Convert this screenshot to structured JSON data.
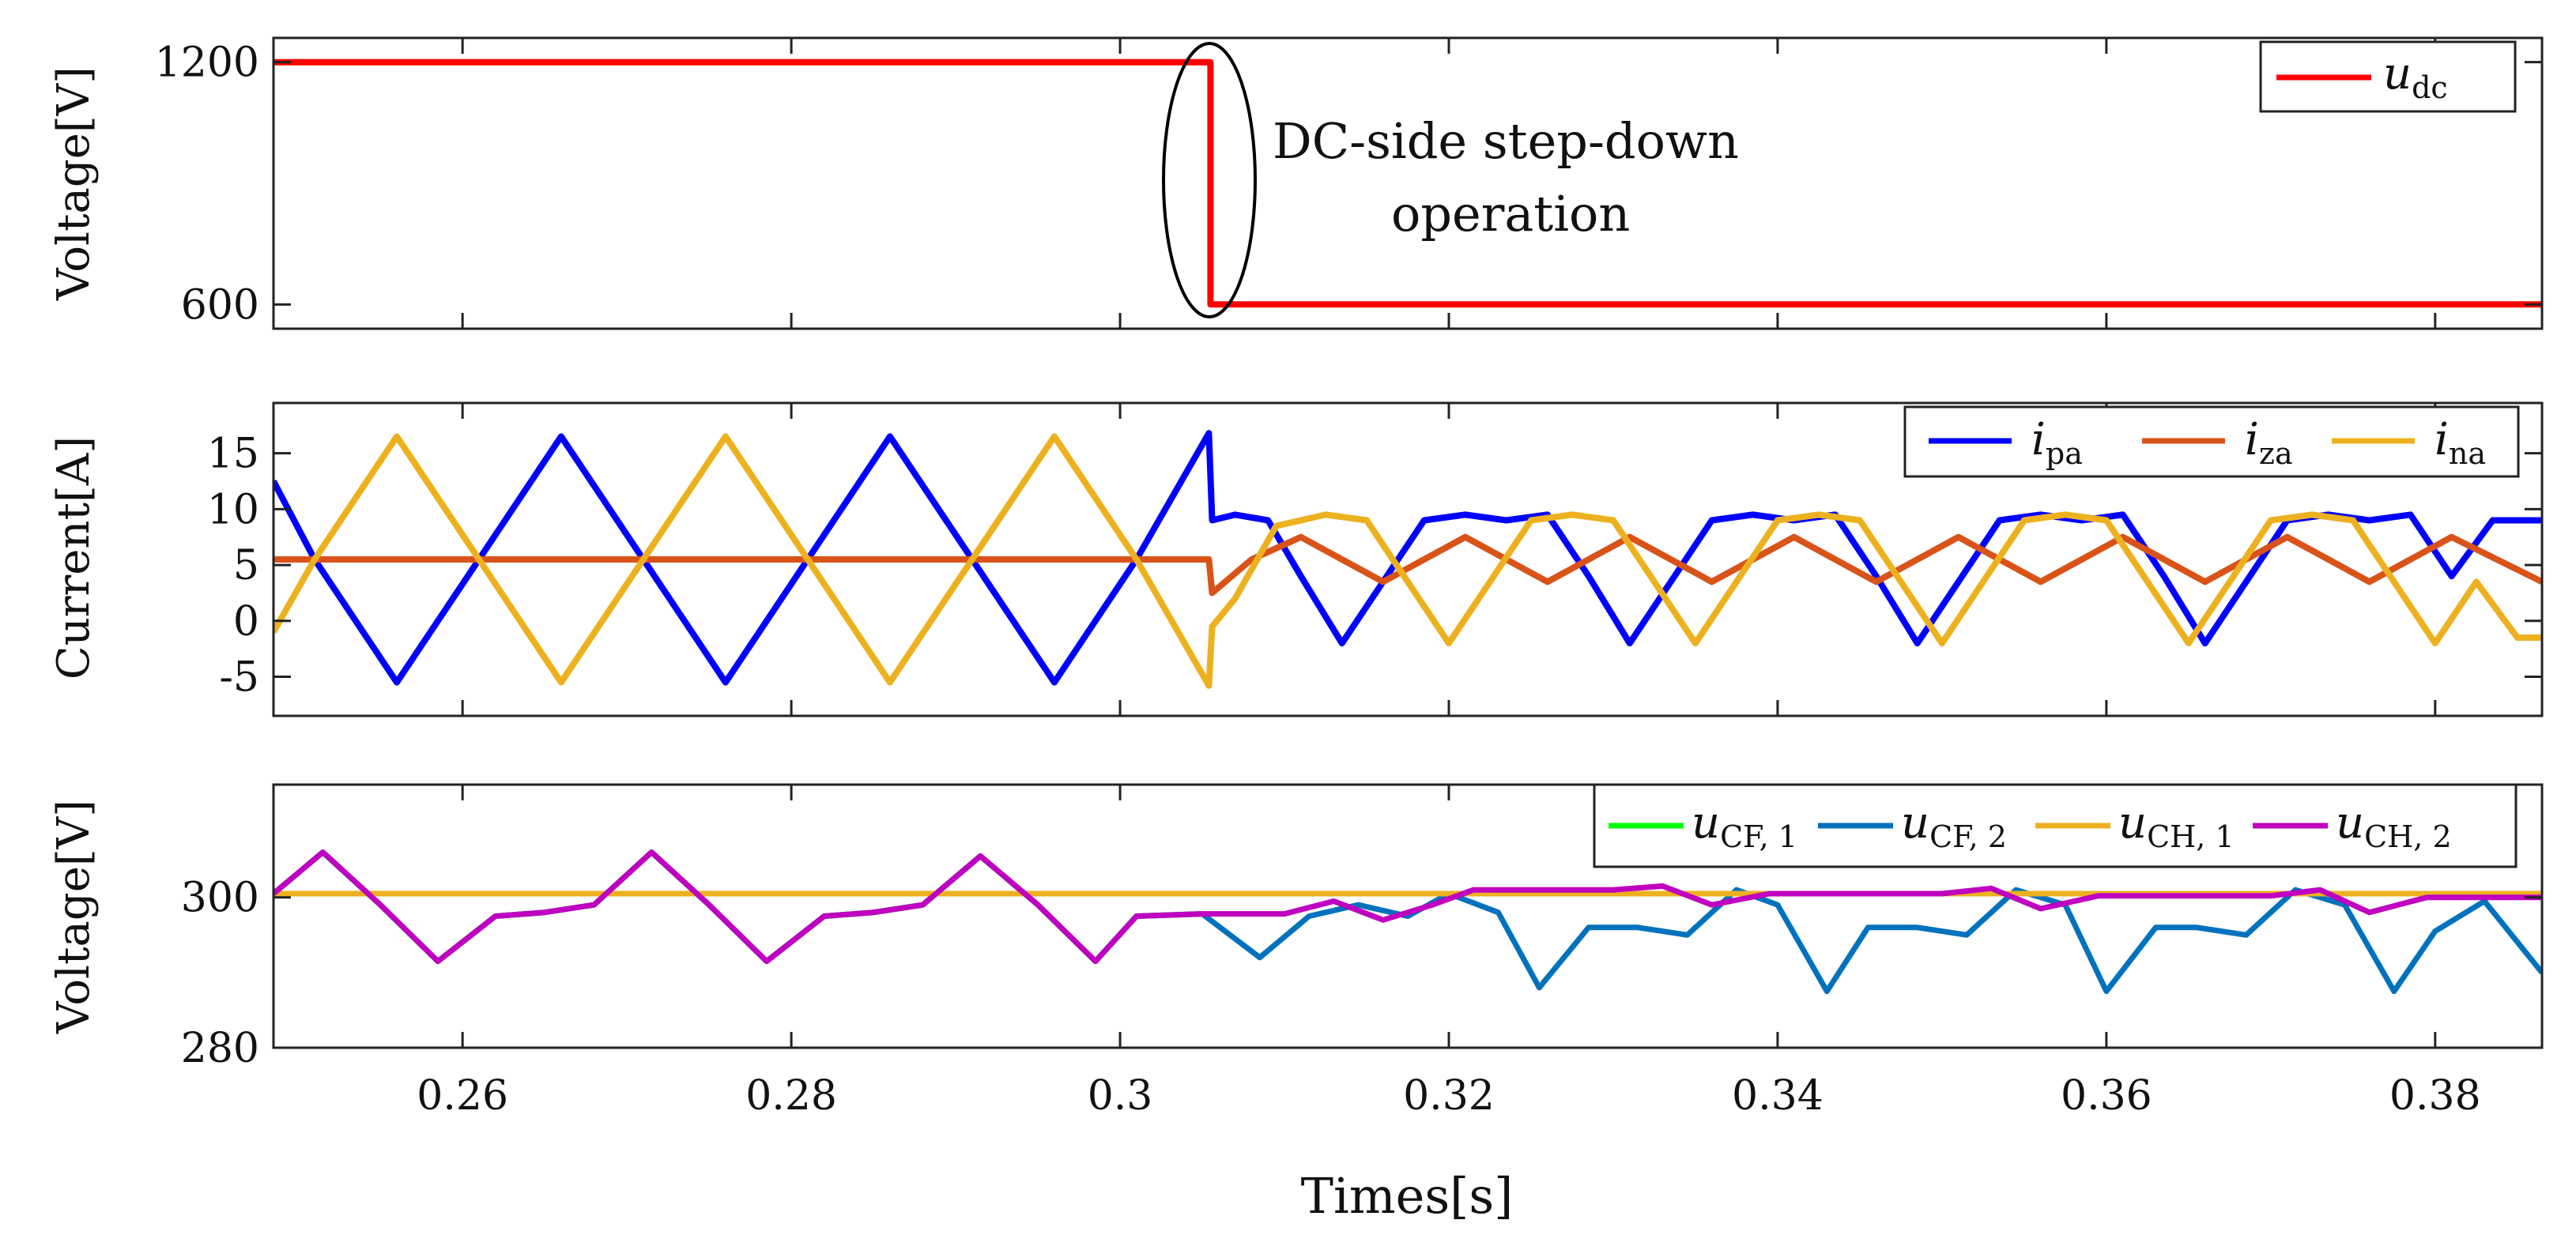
{
  "chart_data": [
    {
      "type": "line",
      "panel": "top",
      "ylabel": "Voltage[V]",
      "ylim": [
        540,
        1260
      ],
      "yticks": [
        600,
        1200
      ],
      "tick_labels": [
        "600",
        "1200"
      ],
      "xlim": [
        0.2485,
        0.3865
      ],
      "legend_position": "top-right",
      "annotation": [
        "DC-side step-down",
        "operation"
      ],
      "series": [
        {
          "name": "u_dc",
          "label": "u",
          "sub": "dc",
          "color": "#ff0000",
          "x": [
            0.2485,
            0.3055,
            0.3055,
            0.3865
          ],
          "y": [
            1200,
            1200,
            600,
            600
          ]
        }
      ]
    },
    {
      "type": "line",
      "panel": "middle",
      "ylabel": "Current[A]",
      "ylim": [
        -8.5,
        19.5
      ],
      "yticks": [
        -5,
        0,
        5,
        10,
        15
      ],
      "tick_labels": [
        "-5",
        "0",
        "5",
        "10",
        "15"
      ],
      "xlim": [
        0.2485,
        0.3865
      ],
      "legend_position": "top-right",
      "series": [
        {
          "name": "i_pa",
          "label": "i",
          "sub": "pa",
          "color": "#0000ff",
          "x": [
            0.2485,
            0.251,
            0.256,
            0.261,
            0.266,
            0.271,
            0.276,
            0.281,
            0.286,
            0.291,
            0.296,
            0.301,
            0.3054,
            0.3056,
            0.307,
            0.309,
            0.311,
            0.3135,
            0.316,
            0.3185,
            0.321,
            0.3235,
            0.326,
            0.3285,
            0.331,
            0.3335,
            0.336,
            0.3385,
            0.341,
            0.3435,
            0.346,
            0.3485,
            0.351,
            0.3535,
            0.356,
            0.3585,
            0.361,
            0.3635,
            0.366,
            0.3685,
            0.371,
            0.3735,
            0.376,
            0.3785,
            0.381,
            0.3835,
            0.3865
          ],
          "y": [
            12.5,
            5.5,
            -5.5,
            5.5,
            16.5,
            5.5,
            -5.5,
            5.5,
            16.5,
            5.5,
            -5.5,
            5.5,
            16.8,
            9.0,
            9.5,
            9.0,
            4.0,
            -2.0,
            3.5,
            9.0,
            9.5,
            9.0,
            9.5,
            4.0,
            -2.0,
            3.5,
            9.0,
            9.5,
            9.0,
            9.5,
            4.0,
            -2.0,
            3.5,
            9.0,
            9.5,
            9.0,
            9.5,
            4.0,
            -2.0,
            3.5,
            9.0,
            9.5,
            9.0,
            9.5,
            4.0,
            9.0,
            9.0
          ]
        },
        {
          "name": "i_za",
          "label": "i",
          "sub": "za",
          "color": "#d95319",
          "x": [
            0.2485,
            0.3054,
            0.3056,
            0.308,
            0.311,
            0.316,
            0.321,
            0.326,
            0.331,
            0.336,
            0.341,
            0.346,
            0.351,
            0.356,
            0.361,
            0.366,
            0.371,
            0.376,
            0.381,
            0.3865
          ],
          "y": [
            5.5,
            5.5,
            2.5,
            5.5,
            7.5,
            3.5,
            7.5,
            3.5,
            7.5,
            3.5,
            7.5,
            3.5,
            7.5,
            3.5,
            7.5,
            3.5,
            7.5,
            3.5,
            7.5,
            3.5
          ]
        },
        {
          "name": "i_na",
          "label": "i",
          "sub": "na",
          "color": "#edb120",
          "x": [
            0.2485,
            0.251,
            0.256,
            0.261,
            0.266,
            0.271,
            0.276,
            0.281,
            0.286,
            0.291,
            0.296,
            0.301,
            0.3054,
            0.3056,
            0.307,
            0.3095,
            0.3125,
            0.315,
            0.3175,
            0.32,
            0.3225,
            0.325,
            0.3275,
            0.33,
            0.3325,
            0.335,
            0.3375,
            0.34,
            0.3425,
            0.345,
            0.3475,
            0.35,
            0.3525,
            0.355,
            0.3575,
            0.36,
            0.3625,
            0.365,
            0.3675,
            0.37,
            0.3725,
            0.375,
            0.3775,
            0.38,
            0.3825,
            0.385,
            0.3865
          ],
          "y": [
            -1.0,
            5.5,
            16.5,
            5.5,
            -5.5,
            5.5,
            16.5,
            5.5,
            -5.5,
            5.5,
            16.5,
            5.5,
            -5.8,
            -0.5,
            2.0,
            8.5,
            9.5,
            9.0,
            3.5,
            -2.0,
            3.5,
            9.0,
            9.5,
            9.0,
            3.5,
            -2.0,
            3.5,
            9.0,
            9.5,
            9.0,
            3.5,
            -2.0,
            3.5,
            9.0,
            9.5,
            9.0,
            3.5,
            -2.0,
            3.5,
            9.0,
            9.5,
            9.0,
            3.5,
            -2.0,
            3.5,
            -1.5,
            -1.5
          ]
        }
      ]
    },
    {
      "type": "line",
      "panel": "bottom",
      "ylabel": "Voltage[V]",
      "xlabel": "Times[s]",
      "ylim": [
        280,
        315
      ],
      "yticks": [
        280,
        300
      ],
      "tick_labels": [
        "280",
        "300"
      ],
      "xlim": [
        0.2485,
        0.3865
      ],
      "xticks": [
        0.26,
        0.28,
        0.3,
        0.32,
        0.34,
        0.36,
        0.38
      ],
      "xtick_labels": [
        "0.26",
        "0.28",
        "0.3",
        "0.32",
        "0.34",
        "0.36",
        "0.38"
      ],
      "legend_position": "top-right",
      "series": [
        {
          "name": "u_CF,1",
          "label": "u",
          "sub": "CF, 1",
          "color": "#00ff00",
          "x": [
            0.2485,
            0.2515,
            0.255,
            0.2585,
            0.262,
            0.265,
            0.268,
            0.2715,
            0.275,
            0.2785,
            0.282,
            0.285,
            0.288,
            0.2915,
            0.295,
            0.2985,
            0.301,
            0.305
          ],
          "y": [
            300.5,
            306,
            299,
            291.5,
            297.5,
            298,
            299,
            306,
            299,
            291.5,
            297.5,
            298,
            299,
            305.5,
            299,
            291.5,
            297.5,
            297.8
          ]
        },
        {
          "name": "u_CF,2",
          "label": "u",
          "sub": "CF, 2",
          "color": "#0072bd",
          "x": [
            0.2485,
            0.2515,
            0.255,
            0.2585,
            0.262,
            0.265,
            0.268,
            0.2715,
            0.275,
            0.2785,
            0.282,
            0.285,
            0.288,
            0.2915,
            0.295,
            0.2985,
            0.301,
            0.305,
            0.3085,
            0.3115,
            0.3145,
            0.3175,
            0.32,
            0.323,
            0.3255,
            0.3285,
            0.3315,
            0.3345,
            0.3375,
            0.34,
            0.343,
            0.3455,
            0.3485,
            0.3515,
            0.3545,
            0.3575,
            0.36,
            0.363,
            0.3655,
            0.3685,
            0.3715,
            0.3745,
            0.3775,
            0.38,
            0.383,
            0.3865
          ],
          "y": [
            300.5,
            306,
            299,
            291.5,
            297.5,
            298,
            299,
            306,
            299,
            291.5,
            297.5,
            298,
            299,
            305.5,
            299,
            291.5,
            297.5,
            297.8,
            292,
            297.5,
            299,
            297.5,
            300.5,
            298,
            288,
            296,
            296,
            295,
            301,
            299,
            287.5,
            296,
            296,
            295,
            301,
            299,
            287.5,
            296,
            296,
            295,
            301,
            299,
            287.5,
            295.5,
            299.5,
            290
          ]
        },
        {
          "name": "u_CH,1",
          "label": "u",
          "sub": "CH, 1",
          "color": "#edb120",
          "x": [
            0.2485,
            0.3865
          ],
          "y": [
            300.5,
            300.5
          ],
          "hidden_behind": true
        },
        {
          "name": "u_CH,2",
          "label": "u",
          "sub": "CH, 2",
          "color": "#c000c0",
          "x": [
            0.2485,
            0.2515,
            0.255,
            0.2585,
            0.262,
            0.265,
            0.268,
            0.2715,
            0.275,
            0.2785,
            0.282,
            0.285,
            0.288,
            0.2915,
            0.295,
            0.2985,
            0.301,
            0.305,
            0.31,
            0.313,
            0.316,
            0.319,
            0.3215,
            0.326,
            0.33,
            0.333,
            0.336,
            0.3395,
            0.342,
            0.346,
            0.35,
            0.353,
            0.356,
            0.3595,
            0.362,
            0.366,
            0.37,
            0.373,
            0.376,
            0.3795,
            0.382,
            0.3865
          ],
          "y": [
            300.5,
            306,
            299,
            291.5,
            297.5,
            298,
            299,
            306,
            299,
            291.5,
            297.5,
            298,
            299,
            305.5,
            299,
            291.5,
            297.5,
            297.8,
            297.8,
            299.5,
            297,
            299,
            301,
            301,
            301,
            301.5,
            299,
            300.5,
            300.5,
            300.5,
            300.5,
            301.2,
            298.5,
            300.2,
            300.2,
            300.2,
            300.2,
            301,
            298,
            300,
            300,
            300
          ]
        }
      ]
    }
  ]
}
